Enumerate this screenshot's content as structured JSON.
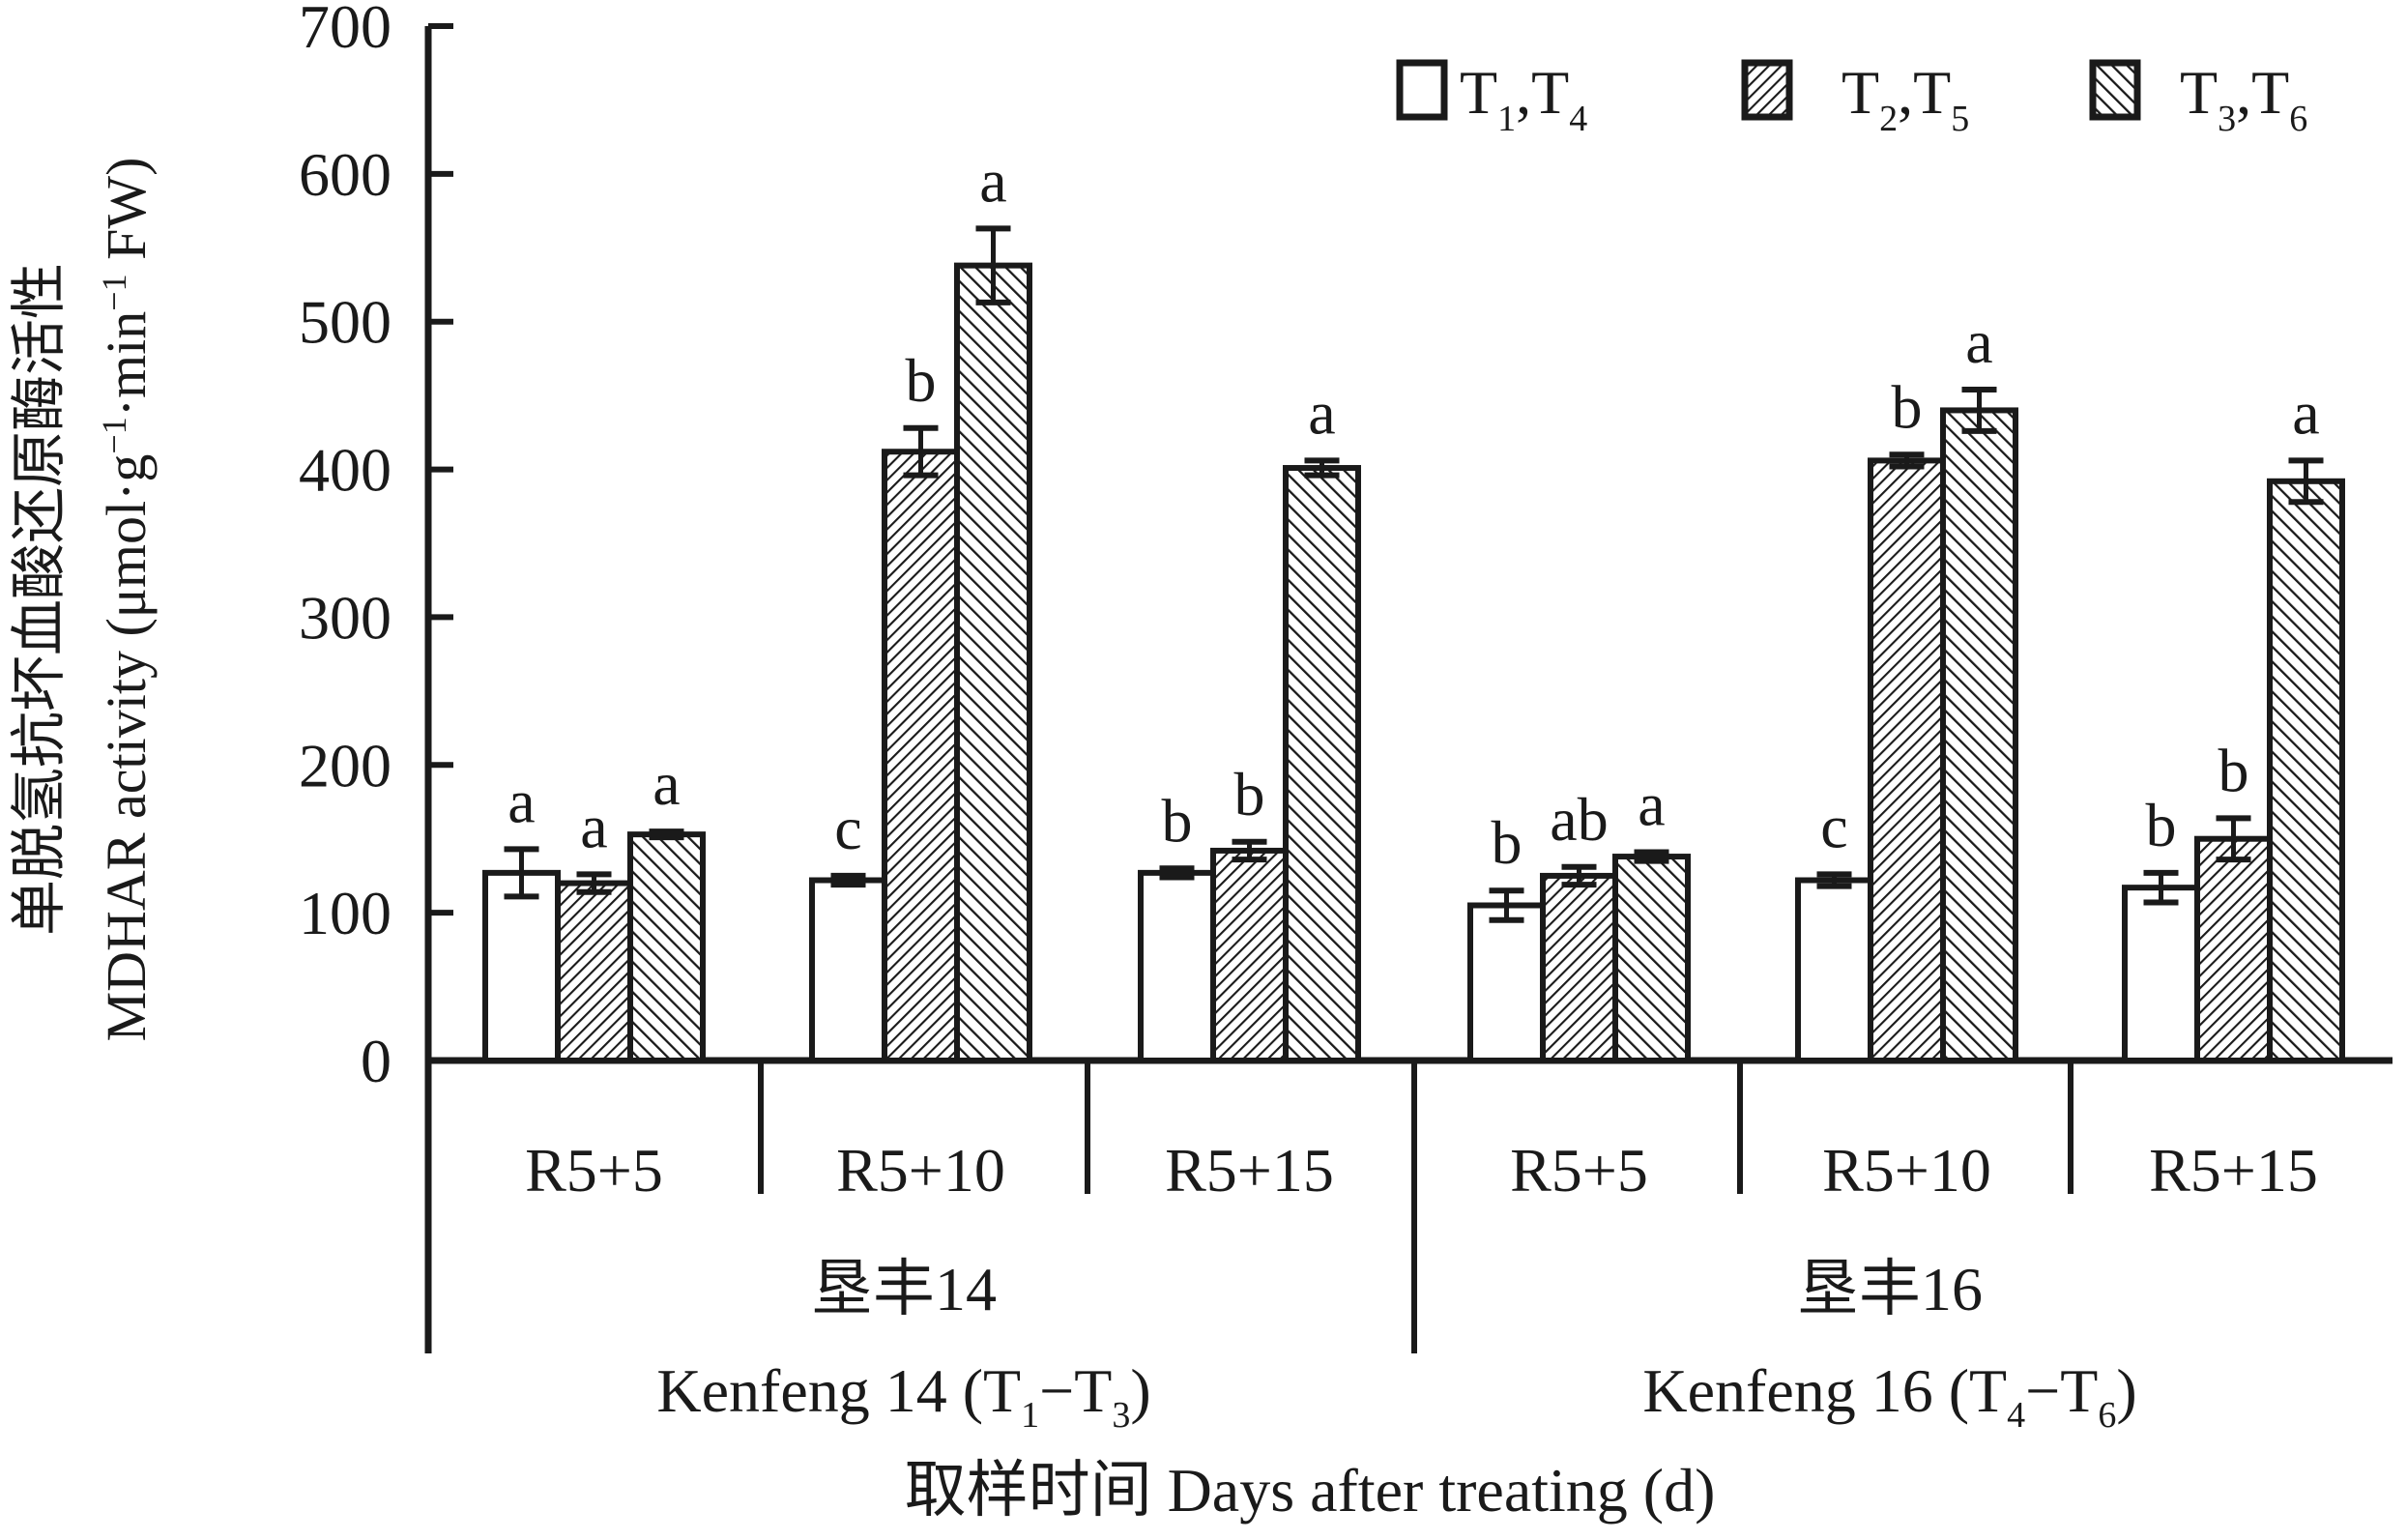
{
  "chart_data": {
    "type": "bar",
    "y_axis_label_zh": "单脱氢抗坏血酸还原酶活性",
    "y_axis_label_en": "MDHAR activity (μmol·g",
    "y_axis_label_unit_mid": "·min",
    "y_axis_label_unit_end": " FW)",
    "y_axis_label_sup": "−1",
    "ylim": [
      0,
      700
    ],
    "yticks": [
      "0",
      "100",
      "200",
      "300",
      "400",
      "500",
      "600",
      "700"
    ],
    "x_axis_label": "取样时间 Days after treating (d)",
    "legend_position": "top-right",
    "legend": [
      {
        "main": "T",
        "sub1": "1",
        "sep": ",T",
        "sub2": "4",
        "pattern": "plain"
      },
      {
        "main": "T",
        "sub1": "2",
        "sep": ",T",
        "sub2": "5",
        "pattern": "diag-fine"
      },
      {
        "main": "T",
        "sub1": "3",
        "sep": ",T",
        "sub2": "6",
        "pattern": "diag-wide"
      }
    ],
    "groups": [
      {
        "name_zh": "垦丰14",
        "name_en_pre": "Kenfeng 14 (T",
        "sub_a": "1",
        "dash": "−T",
        "sub_b": "3",
        "close": ")",
        "clusters": [
          {
            "label": "R5+5",
            "values": [
              127,
              120,
              153
            ],
            "errors": [
              16,
              6,
              2
            ],
            "letters": [
              "a",
              "a",
              "a"
            ]
          },
          {
            "label": "R5+10",
            "values": [
              122,
              412,
              538
            ],
            "errors": [
              3,
              16,
              25
            ],
            "letters": [
              "c",
              "b",
              "a"
            ]
          },
          {
            "label": "R5+15",
            "values": [
              127,
              142,
              401
            ],
            "errors": [
              3,
              6,
              5
            ],
            "letters": [
              "b",
              "b",
              "a"
            ]
          }
        ]
      },
      {
        "name_zh": "垦丰16",
        "name_en_pre": "Kenfeng 16 (T",
        "sub_a": "4",
        "dash": "−T",
        "sub_b": "6",
        "close": ")",
        "clusters": [
          {
            "label": "R5+5",
            "values": [
              105,
              125,
              138
            ],
            "errors": [
              10,
              6,
              3
            ],
            "letters": [
              "b",
              "ab",
              "a"
            ]
          },
          {
            "label": "R5+10",
            "values": [
              122,
              406,
              440
            ],
            "errors": [
              4,
              4,
              14
            ],
            "letters": [
              "c",
              "b",
              "a"
            ]
          },
          {
            "label": "R5+15",
            "values": [
              117,
              150,
              392
            ],
            "errors": [
              10,
              14,
              14
            ],
            "letters": [
              "b",
              "b",
              "a"
            ]
          }
        ]
      }
    ]
  }
}
